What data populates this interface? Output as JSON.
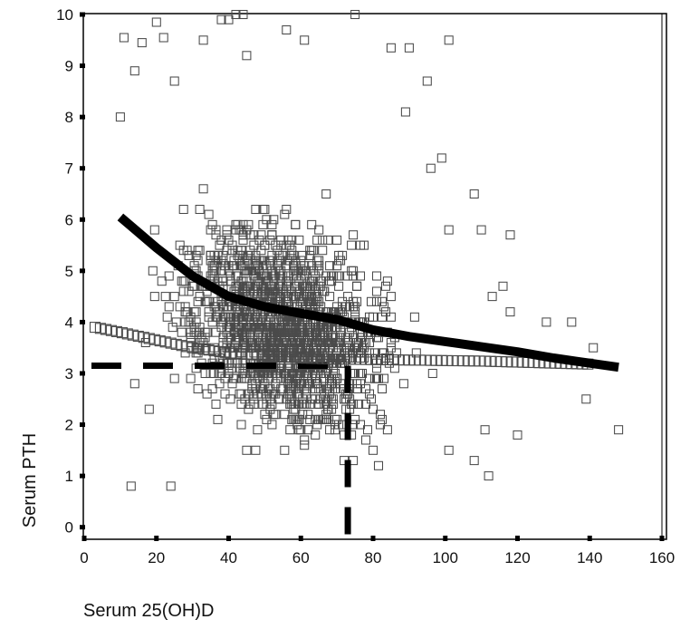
{
  "chart_data": {
    "type": "scatter",
    "title": "",
    "xlabel": "Serum 25(OH)D",
    "ylabel": "Serum PTH",
    "xlim": [
      0,
      160
    ],
    "ylim": [
      -0.2,
      10
    ],
    "xticks": [
      0,
      20,
      40,
      60,
      80,
      100,
      120,
      140,
      160
    ],
    "yticks": [
      0,
      1,
      2,
      3,
      4,
      5,
      6,
      7,
      8,
      9,
      10
    ],
    "grid": false,
    "legend": "none",
    "colors": {
      "points": "#4a4a4a",
      "lines": "#000000",
      "frame": "#000000"
    },
    "series": [
      {
        "kind": "scatter-cloud",
        "marker": "open-square",
        "approx_count": 1700,
        "cloud": {
          "x_center": 55,
          "x_spread": 25,
          "x_range": [
            8,
            150
          ],
          "y_center": 3.9,
          "y_spread": 1.75,
          "y_range": [
            0.8,
            10
          ],
          "y_trend_per_unit_x": -0.022
        },
        "points": [
          {
            "x": 11,
            "y": 9.55
          },
          {
            "x": 16,
            "y": 9.45
          },
          {
            "x": 20,
            "y": 9.85
          },
          {
            "x": 22,
            "y": 9.55
          },
          {
            "x": 33,
            "y": 9.5
          },
          {
            "x": 38,
            "y": 9.9
          },
          {
            "x": 40,
            "y": 9.9
          },
          {
            "x": 42,
            "y": 10.0
          },
          {
            "x": 44,
            "y": 10.0
          },
          {
            "x": 56,
            "y": 9.7
          },
          {
            "x": 61,
            "y": 9.5
          },
          {
            "x": 75,
            "y": 10.0
          },
          {
            "x": 85,
            "y": 9.35
          },
          {
            "x": 90,
            "y": 9.35
          },
          {
            "x": 101,
            "y": 9.5
          },
          {
            "x": 45,
            "y": 9.2
          },
          {
            "x": 14,
            "y": 8.9
          },
          {
            "x": 25,
            "y": 8.7
          },
          {
            "x": 95,
            "y": 8.7
          },
          {
            "x": 89,
            "y": 8.1
          },
          {
            "x": 96,
            "y": 7.0
          },
          {
            "x": 99,
            "y": 7.2
          },
          {
            "x": 108,
            "y": 6.5
          },
          {
            "x": 101,
            "y": 5.8
          },
          {
            "x": 110,
            "y": 5.8
          },
          {
            "x": 118,
            "y": 5.7
          },
          {
            "x": 113,
            "y": 4.5
          },
          {
            "x": 116,
            "y": 4.7
          },
          {
            "x": 118,
            "y": 4.2
          },
          {
            "x": 128,
            "y": 4.0
          },
          {
            "x": 135,
            "y": 4.0
          },
          {
            "x": 141,
            "y": 3.5
          },
          {
            "x": 139,
            "y": 2.5
          },
          {
            "x": 148,
            "y": 1.9
          },
          {
            "x": 120,
            "y": 1.8
          },
          {
            "x": 111,
            "y": 1.9
          },
          {
            "x": 108,
            "y": 1.3
          },
          {
            "x": 112,
            "y": 1.0
          },
          {
            "x": 101,
            "y": 1.5
          },
          {
            "x": 13,
            "y": 0.8
          },
          {
            "x": 24,
            "y": 0.8
          },
          {
            "x": 14,
            "y": 2.8
          },
          {
            "x": 18,
            "y": 2.3
          },
          {
            "x": 10,
            "y": 8.0
          }
        ]
      },
      {
        "kind": "curve",
        "style": "thick-solid",
        "description": "fitted PTH curve",
        "x": [
          10,
          20,
          30,
          40,
          50,
          60,
          70,
          80,
          90,
          100,
          110,
          120,
          130,
          140,
          148
        ],
        "y": [
          6.05,
          5.45,
          4.9,
          4.5,
          4.3,
          4.17,
          4.05,
          3.85,
          3.72,
          3.62,
          3.52,
          3.42,
          3.3,
          3.2,
          3.12
        ]
      },
      {
        "kind": "curve",
        "style": "open-square-band",
        "description": "dense band of overlapping square markers",
        "x": [
          3,
          10,
          20,
          30,
          40,
          50,
          60,
          70,
          80,
          90,
          100,
          110,
          120,
          130,
          140
        ],
        "y": [
          3.9,
          3.8,
          3.65,
          3.5,
          3.4,
          3.35,
          3.3,
          3.28,
          3.27,
          3.26,
          3.25,
          3.24,
          3.22,
          3.2,
          3.18
        ]
      },
      {
        "kind": "reference-line",
        "orientation": "horizontal",
        "style": "thick-dashed",
        "y": 3.15,
        "x_range": [
          2,
          73
        ]
      },
      {
        "kind": "reference-line",
        "orientation": "vertical",
        "style": "thick-dashed",
        "x": 73,
        "y_range": [
          -0.2,
          3.15
        ]
      }
    ]
  }
}
